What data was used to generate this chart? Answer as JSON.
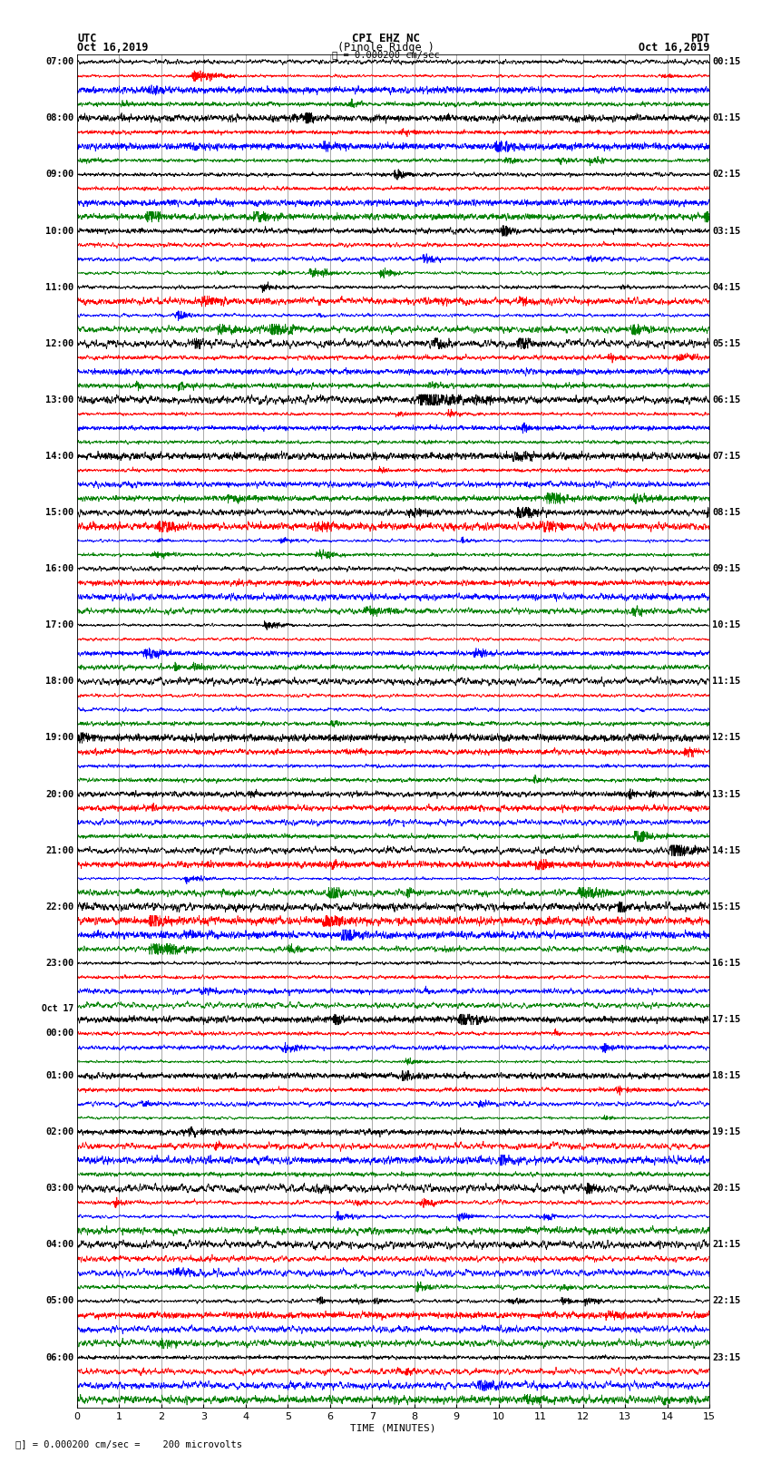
{
  "title_line1": "CPI EHZ NC",
  "title_line2": "(Pinole Ridge )",
  "scale_label": "= 0.000200 cm/sec",
  "utc_label": "UTC",
  "utc_date": "Oct 16,2019",
  "pdt_label": "PDT",
  "pdt_date": "Oct 16,2019",
  "xlabel": "TIME (MINUTES)",
  "footer": "= 0.000200 cm/sec =    200 microvolts",
  "xlim": [
    0,
    15
  ],
  "xticks": [
    0,
    1,
    2,
    3,
    4,
    5,
    6,
    7,
    8,
    9,
    10,
    11,
    12,
    13,
    14,
    15
  ],
  "figsize": [
    8.5,
    16.13
  ],
  "dpi": 100,
  "bg_color": "#ffffff",
  "trace_colors": [
    "black",
    "red",
    "blue",
    "green"
  ],
  "num_rows": 96,
  "row_labels_left": [
    "07:00",
    "",
    "",
    "",
    "08:00",
    "",
    "",
    "",
    "09:00",
    "",
    "",
    "",
    "10:00",
    "",
    "",
    "",
    "11:00",
    "",
    "",
    "",
    "12:00",
    "",
    "",
    "",
    "13:00",
    "",
    "",
    "",
    "14:00",
    "",
    "",
    "",
    "15:00",
    "",
    "",
    "",
    "16:00",
    "",
    "",
    "",
    "17:00",
    "",
    "",
    "",
    "18:00",
    "",
    "",
    "",
    "19:00",
    "",
    "",
    "",
    "20:00",
    "",
    "",
    "",
    "21:00",
    "",
    "",
    "",
    "22:00",
    "",
    "",
    "",
    "23:00",
    "",
    "",
    "",
    "Oct 17",
    "00:00",
    "",
    "",
    "01:00",
    "",
    "",
    "",
    "02:00",
    "",
    "",
    "",
    "03:00",
    "",
    "",
    "",
    "04:00",
    "",
    "",
    "",
    "05:00",
    "",
    "",
    "",
    "06:00",
    "",
    "",
    ""
  ],
  "row_labels_right": [
    "00:15",
    "",
    "",
    "",
    "01:15",
    "",
    "",
    "",
    "02:15",
    "",
    "",
    "",
    "03:15",
    "",
    "",
    "",
    "04:15",
    "",
    "",
    "",
    "05:15",
    "",
    "",
    "",
    "06:15",
    "",
    "",
    "",
    "07:15",
    "",
    "",
    "",
    "08:15",
    "",
    "",
    "",
    "09:15",
    "",
    "",
    "",
    "10:15",
    "",
    "",
    "",
    "11:15",
    "",
    "",
    "",
    "12:15",
    "",
    "",
    "",
    "13:15",
    "",
    "",
    "",
    "14:15",
    "",
    "",
    "",
    "15:15",
    "",
    "",
    "",
    "16:15",
    "",
    "",
    "",
    "17:15",
    "",
    "",
    "",
    "18:15",
    "",
    "",
    "",
    "19:15",
    "",
    "",
    "",
    "20:15",
    "",
    "",
    "",
    "21:15",
    "",
    "",
    "",
    "22:15",
    "",
    "",
    "",
    "23:15",
    "",
    "",
    ""
  ],
  "seed": 42
}
